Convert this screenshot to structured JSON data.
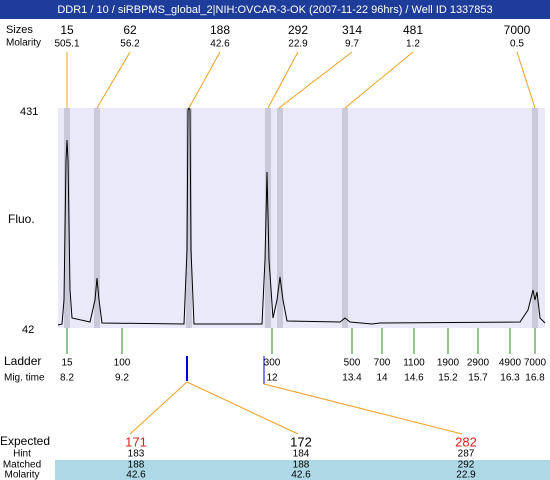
{
  "header": {
    "title": "DDR1 / 10 / siRBPMS_global_2|NIH:OVCAR-3-OK (2007-11-22 96hrs) / Well ID 1337853"
  },
  "peaks": {
    "size_label": "Sizes",
    "molarity_label": "Molarity",
    "sizes": [
      "15",
      "62",
      "188",
      "292",
      "314",
      "481",
      "7000"
    ],
    "molarity": [
      "505.1",
      "56.2",
      "42.6",
      "22.9",
      "9.7",
      "1.2",
      "0.5"
    ]
  },
  "y_axis": {
    "label": "Fluo.",
    "top": "431",
    "bottom": "42"
  },
  "ladder": {
    "label": "Ladder",
    "time_label": "Mig. time",
    "sizes": [
      "15",
      "100",
      "300",
      "500",
      "700",
      "1100",
      "1900",
      "2900",
      "4900",
      "7000"
    ],
    "times": [
      "8.2",
      "9.2",
      "12",
      "13.4",
      "14",
      "14.6",
      "15.2",
      "15.7",
      "16.3",
      "16.8"
    ]
  },
  "expected": {
    "label": "Expected",
    "values": [
      "171",
      "172",
      "282"
    ],
    "rows": [
      {
        "label": "Hint",
        "values": [
          "183",
          "184",
          "287"
        ]
      },
      {
        "label": "Matched",
        "values": [
          "188",
          "188",
          "292"
        ]
      },
      {
        "label": "Molarity",
        "values": [
          "42.6",
          "42.6",
          "22.9"
        ]
      }
    ]
  }
}
